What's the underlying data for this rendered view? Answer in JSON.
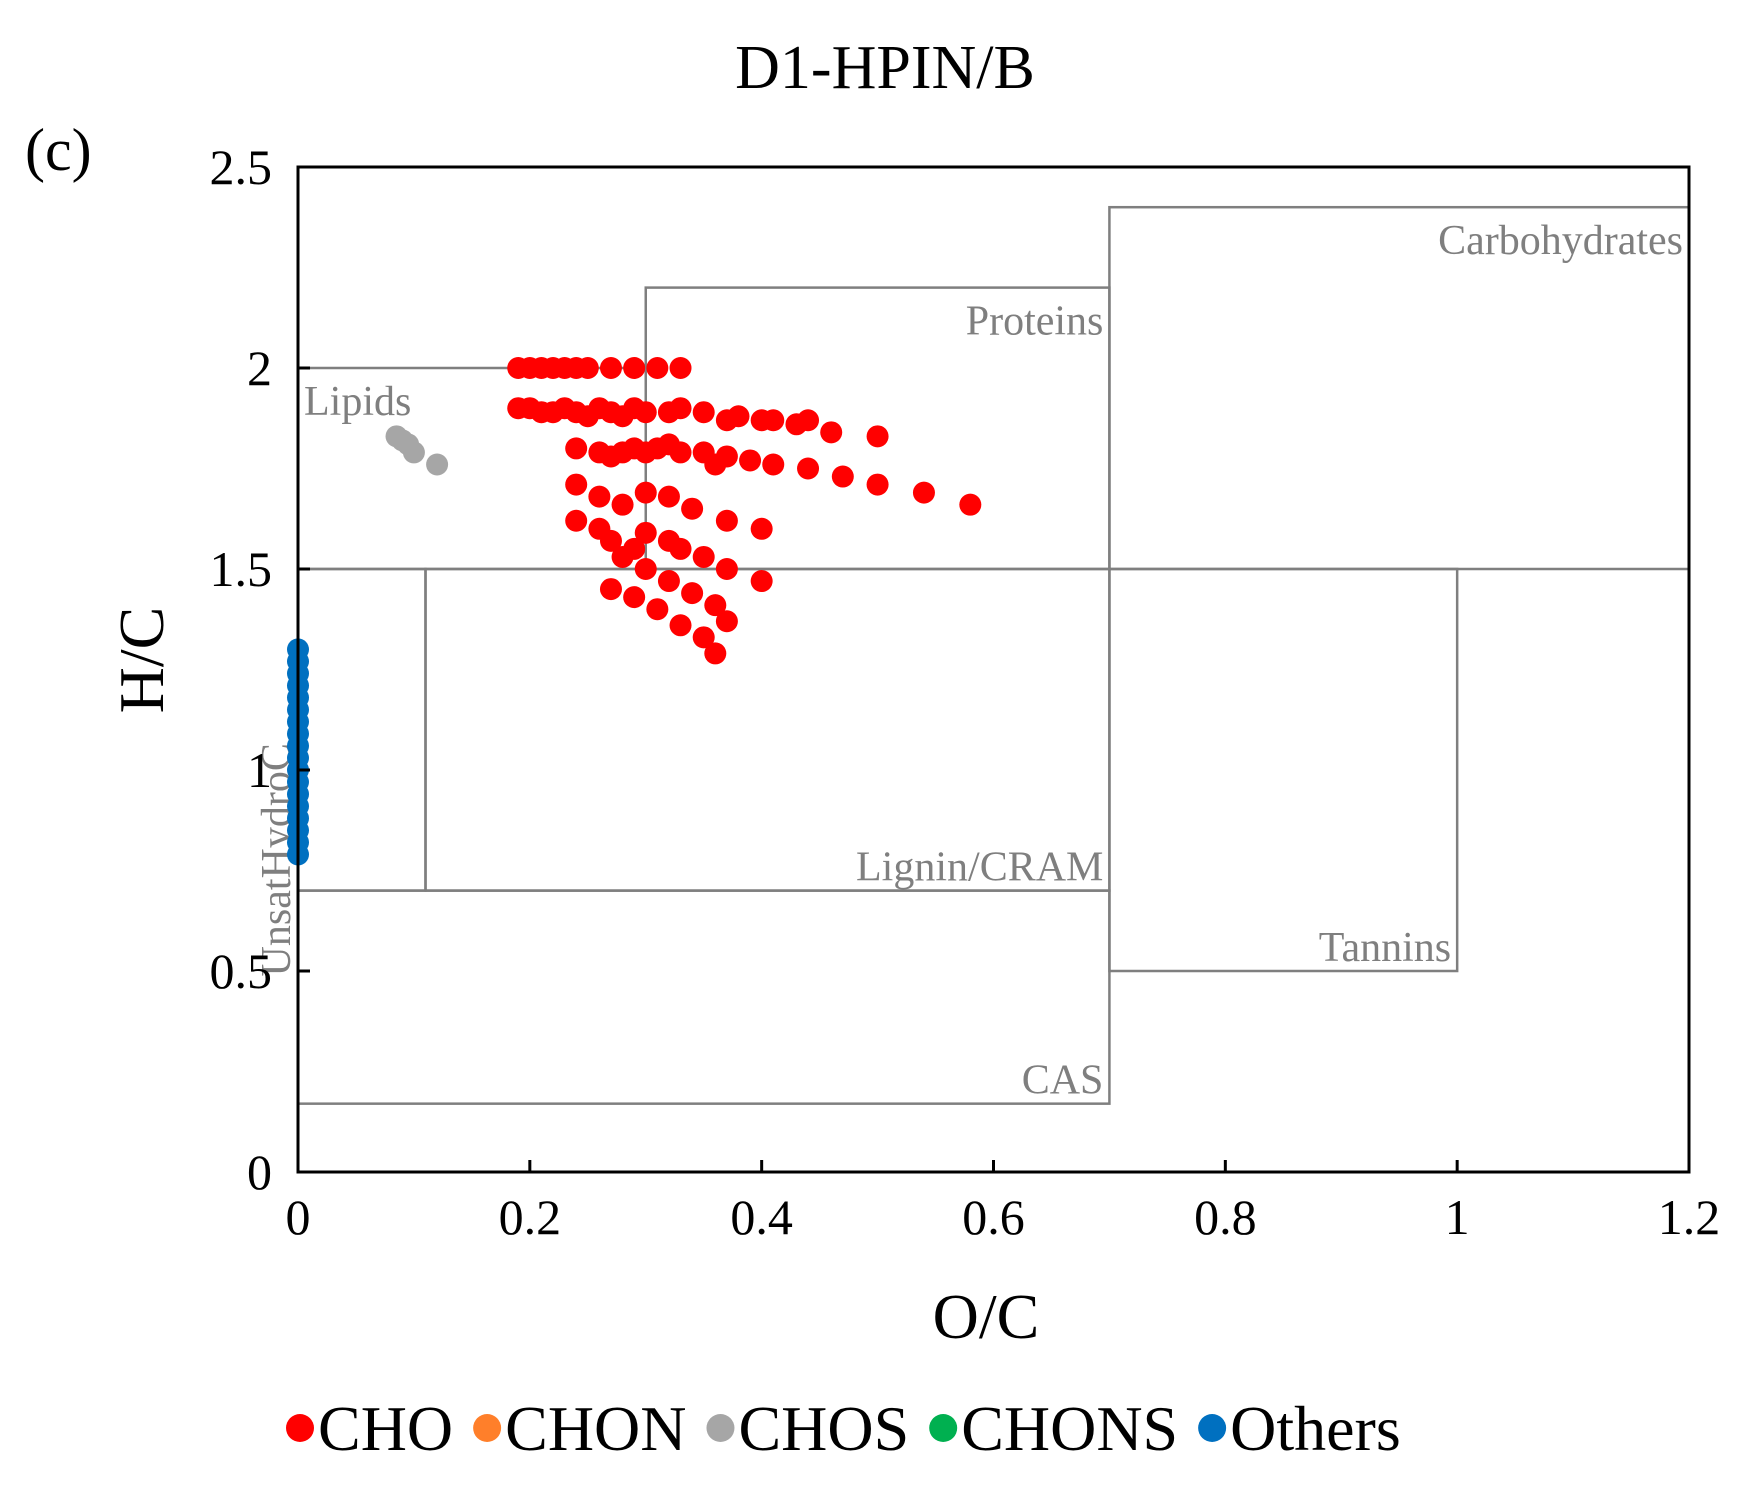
{
  "chart_data": {
    "type": "scatter",
    "title": "D1-HPIN/B",
    "panel_label": "(c)",
    "xlabel": "O/C",
    "ylabel": "H/C",
    "xlim": [
      0,
      1.2
    ],
    "ylim": [
      0,
      2.5
    ],
    "x_ticks": [
      {
        "value": 0,
        "label": "0"
      },
      {
        "value": 0.2,
        "label": "0.2"
      },
      {
        "value": 0.4,
        "label": "0.4"
      },
      {
        "value": 0.6,
        "label": "0.6"
      },
      {
        "value": 0.8,
        "label": "0.8"
      },
      {
        "value": 1.0,
        "label": "1"
      },
      {
        "value": 1.2,
        "label": "1.2"
      }
    ],
    "y_ticks": [
      {
        "value": 0,
        "label": "0"
      },
      {
        "value": 0.5,
        "label": "0.5"
      },
      {
        "value": 1.0,
        "label": "1"
      },
      {
        "value": 1.5,
        "label": "1.5"
      },
      {
        "value": 2.0,
        "label": "2"
      },
      {
        "value": 2.5,
        "label": "2.5"
      }
    ],
    "grid": false,
    "legend_position": "bottom",
    "regions": [
      {
        "name": "Lipids",
        "x": [
          0.0,
          0.3
        ],
        "y": [
          1.5,
          2.0
        ],
        "label_anchor": "top-left"
      },
      {
        "name": "Proteins",
        "x": [
          0.3,
          0.7
        ],
        "y": [
          1.5,
          2.2
        ],
        "label_anchor": "top-right"
      },
      {
        "name": "Carbohydrates",
        "x": [
          0.7,
          1.2
        ],
        "y": [
          1.5,
          2.4
        ],
        "label_anchor": "top-right"
      },
      {
        "name": "UnsatHydroC",
        "x": [
          0.0,
          0.11
        ],
        "y": [
          0.7,
          1.5
        ],
        "label_anchor": "vertical-left"
      },
      {
        "name": "Lignin/CRAM",
        "x": [
          0.11,
          0.7
        ],
        "y": [
          0.7,
          1.5
        ],
        "label_anchor": "bottom-right"
      },
      {
        "name": "Tannins",
        "x": [
          0.7,
          1.0
        ],
        "y": [
          0.5,
          1.5
        ],
        "label_anchor": "bottom-right"
      },
      {
        "name": "CAS",
        "x": [
          0.0,
          0.7
        ],
        "y": [
          0.17,
          0.7
        ],
        "label_anchor": "bottom-right"
      }
    ],
    "series": [
      {
        "name": "CHO",
        "color": "#ff0000",
        "points": [
          [
            0.19,
            2.0
          ],
          [
            0.2,
            2.0
          ],
          [
            0.21,
            2.0
          ],
          [
            0.22,
            2.0
          ],
          [
            0.23,
            2.0
          ],
          [
            0.24,
            2.0
          ],
          [
            0.25,
            2.0
          ],
          [
            0.27,
            2.0
          ],
          [
            0.29,
            2.0
          ],
          [
            0.31,
            2.0
          ],
          [
            0.33,
            2.0
          ],
          [
            0.19,
            1.9
          ],
          [
            0.2,
            1.9
          ],
          [
            0.21,
            1.89
          ],
          [
            0.22,
            1.89
          ],
          [
            0.23,
            1.9
          ],
          [
            0.24,
            1.89
          ],
          [
            0.25,
            1.88
          ],
          [
            0.26,
            1.9
          ],
          [
            0.27,
            1.89
          ],
          [
            0.28,
            1.88
          ],
          [
            0.29,
            1.9
          ],
          [
            0.3,
            1.89
          ],
          [
            0.32,
            1.89
          ],
          [
            0.33,
            1.9
          ],
          [
            0.35,
            1.89
          ],
          [
            0.37,
            1.87
          ],
          [
            0.38,
            1.88
          ],
          [
            0.4,
            1.87
          ],
          [
            0.41,
            1.87
          ],
          [
            0.43,
            1.86
          ],
          [
            0.44,
            1.87
          ],
          [
            0.46,
            1.84
          ],
          [
            0.5,
            1.83
          ],
          [
            0.24,
            1.8
          ],
          [
            0.26,
            1.79
          ],
          [
            0.27,
            1.78
          ],
          [
            0.28,
            1.79
          ],
          [
            0.29,
            1.8
          ],
          [
            0.3,
            1.79
          ],
          [
            0.31,
            1.8
          ],
          [
            0.32,
            1.81
          ],
          [
            0.33,
            1.79
          ],
          [
            0.35,
            1.79
          ],
          [
            0.36,
            1.76
          ],
          [
            0.37,
            1.78
          ],
          [
            0.39,
            1.77
          ],
          [
            0.41,
            1.76
          ],
          [
            0.44,
            1.75
          ],
          [
            0.47,
            1.73
          ],
          [
            0.5,
            1.71
          ],
          [
            0.54,
            1.69
          ],
          [
            0.58,
            1.66
          ],
          [
            0.24,
            1.71
          ],
          [
            0.26,
            1.68
          ],
          [
            0.28,
            1.66
          ],
          [
            0.3,
            1.69
          ],
          [
            0.32,
            1.68
          ],
          [
            0.34,
            1.65
          ],
          [
            0.37,
            1.62
          ],
          [
            0.4,
            1.6
          ],
          [
            0.24,
            1.62
          ],
          [
            0.26,
            1.6
          ],
          [
            0.27,
            1.57
          ],
          [
            0.29,
            1.55
          ],
          [
            0.3,
            1.59
          ],
          [
            0.32,
            1.57
          ],
          [
            0.33,
            1.55
          ],
          [
            0.35,
            1.53
          ],
          [
            0.37,
            1.5
          ],
          [
            0.4,
            1.47
          ],
          [
            0.28,
            1.53
          ],
          [
            0.3,
            1.5
          ],
          [
            0.32,
            1.47
          ],
          [
            0.34,
            1.44
          ],
          [
            0.36,
            1.41
          ],
          [
            0.37,
            1.37
          ],
          [
            0.27,
            1.45
          ],
          [
            0.29,
            1.43
          ],
          [
            0.31,
            1.4
          ],
          [
            0.33,
            1.36
          ],
          [
            0.35,
            1.33
          ],
          [
            0.36,
            1.29
          ]
        ]
      },
      {
        "name": "CHON",
        "color": "#ff7f2a",
        "points": []
      },
      {
        "name": "CHOS",
        "color": "#a6a6a6",
        "points": [
          [
            0.085,
            1.83
          ],
          [
            0.09,
            1.82
          ],
          [
            0.095,
            1.81
          ],
          [
            0.1,
            1.79
          ],
          [
            0.12,
            1.76
          ]
        ]
      },
      {
        "name": "CHONS",
        "color": "#00b050",
        "points": []
      },
      {
        "name": "Others",
        "color": "#0070c0",
        "points": [
          [
            0.0,
            1.3
          ],
          [
            0.0,
            1.27
          ],
          [
            0.0,
            1.24
          ],
          [
            0.0,
            1.21
          ],
          [
            0.0,
            1.18
          ],
          [
            0.0,
            1.15
          ],
          [
            0.0,
            1.12
          ],
          [
            0.0,
            1.09
          ],
          [
            0.0,
            1.06
          ],
          [
            0.0,
            1.03
          ],
          [
            0.0,
            1.0
          ],
          [
            0.0,
            0.97
          ],
          [
            0.0,
            0.94
          ],
          [
            0.0,
            0.91
          ],
          [
            0.0,
            0.88
          ],
          [
            0.0,
            0.85
          ],
          [
            0.0,
            0.82
          ],
          [
            0.0,
            0.79
          ]
        ]
      }
    ]
  }
}
